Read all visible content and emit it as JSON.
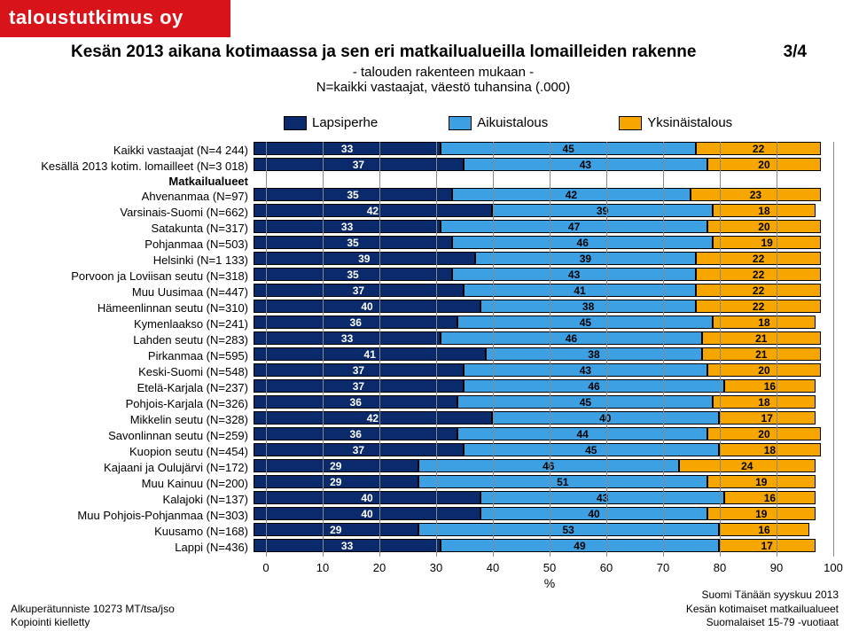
{
  "logo": "taloustutkimus oy",
  "title": "Kesän 2013 aikana kotimaassa ja sen eri matkailualueilla lomailleiden rakenne",
  "page_indicator": "3/4",
  "subtitle1": "- talouden rakenteen mukaan -",
  "subtitle2": "N=kaikki vastaajat, väestö tuhansina (.000)",
  "legend": {
    "items": [
      "Lapsiperhe",
      "Aikuistalous",
      "Yksinäistalous"
    ]
  },
  "colors": {
    "series": [
      "#0a2a6b",
      "#3da0e3",
      "#f7a600"
    ],
    "grid": "#888888",
    "logo_bg": "#d9131a",
    "border": "#000000",
    "background": "#ffffff"
  },
  "chart": {
    "type": "stacked_bar_horizontal",
    "x_axis": {
      "min": 0,
      "max": 100,
      "step": 10,
      "unit": "%"
    },
    "group_header": "Matkailualueet",
    "rows": [
      {
        "label": "Kaikki vastaajat (N=4 244)",
        "values": [
          33,
          45,
          22
        ]
      },
      {
        "label": "Kesällä 2013 kotim. lomailleet (N=3 018)",
        "values": [
          37,
          43,
          20
        ]
      },
      {
        "label": "Ahvenanmaa (N=97)",
        "values": [
          35,
          42,
          23
        ]
      },
      {
        "label": "Varsinais-Suomi (N=662)",
        "values": [
          42,
          39,
          18
        ]
      },
      {
        "label": "Satakunta (N=317)",
        "values": [
          33,
          47,
          20
        ]
      },
      {
        "label": "Pohjanmaa (N=503)",
        "values": [
          35,
          46,
          19
        ]
      },
      {
        "label": "Helsinki (N=1 133)",
        "values": [
          39,
          39,
          22
        ]
      },
      {
        "label": "Porvoon ja Loviisan seutu (N=318)",
        "values": [
          35,
          43,
          22
        ]
      },
      {
        "label": "Muu Uusimaa (N=447)",
        "values": [
          37,
          41,
          22
        ]
      },
      {
        "label": "Hämeenlinnan seutu (N=310)",
        "values": [
          40,
          38,
          22
        ]
      },
      {
        "label": "Kymenlaakso (N=241)",
        "values": [
          36,
          45,
          18
        ]
      },
      {
        "label": "Lahden seutu (N=283)",
        "values": [
          33,
          46,
          21
        ]
      },
      {
        "label": "Pirkanmaa (N=595)",
        "values": [
          41,
          38,
          21
        ]
      },
      {
        "label": "Keski-Suomi (N=548)",
        "values": [
          37,
          43,
          20
        ]
      },
      {
        "label": "Etelä-Karjala (N=237)",
        "values": [
          37,
          46,
          16
        ]
      },
      {
        "label": "Pohjois-Karjala (N=326)",
        "values": [
          36,
          45,
          18
        ]
      },
      {
        "label": "Mikkelin seutu (N=328)",
        "values": [
          42,
          40,
          17
        ]
      },
      {
        "label": "Savonlinnan seutu (N=259)",
        "values": [
          36,
          44,
          20
        ]
      },
      {
        "label": "Kuopion seutu (N=454)",
        "values": [
          37,
          45,
          18
        ]
      },
      {
        "label": "Kajaani ja Oulujärvi (N=172)",
        "values": [
          29,
          46,
          24
        ]
      },
      {
        "label": "Muu Kainuu (N=200)",
        "values": [
          29,
          51,
          19
        ]
      },
      {
        "label": "Kalajoki (N=137)",
        "values": [
          40,
          43,
          16
        ]
      },
      {
        "label": "Muu Pohjois-Pohjanmaa (N=303)",
        "values": [
          40,
          40,
          19
        ]
      },
      {
        "label": "Kuusamo (N=168)",
        "values": [
          29,
          53,
          16
        ]
      },
      {
        "label": "Lappi (N=436)",
        "values": [
          33,
          49,
          17
        ]
      }
    ]
  },
  "footer": {
    "left_line1": "Alkuperätunniste 10273 MT/tsa/jso",
    "left_line2": "Kopiointi kielletty",
    "right_line1": "Suomi Tänään syyskuu 2013",
    "right_line2": "Kesän kotimaiset matkailualueet",
    "right_line3": "Suomalaiset 15-79 -vuotiaat"
  },
  "style": {
    "title_fontsize": 19,
    "label_fontsize": 13,
    "legend_fontsize": 15,
    "value_fontsize": 12,
    "footer_fontsize": 12
  }
}
